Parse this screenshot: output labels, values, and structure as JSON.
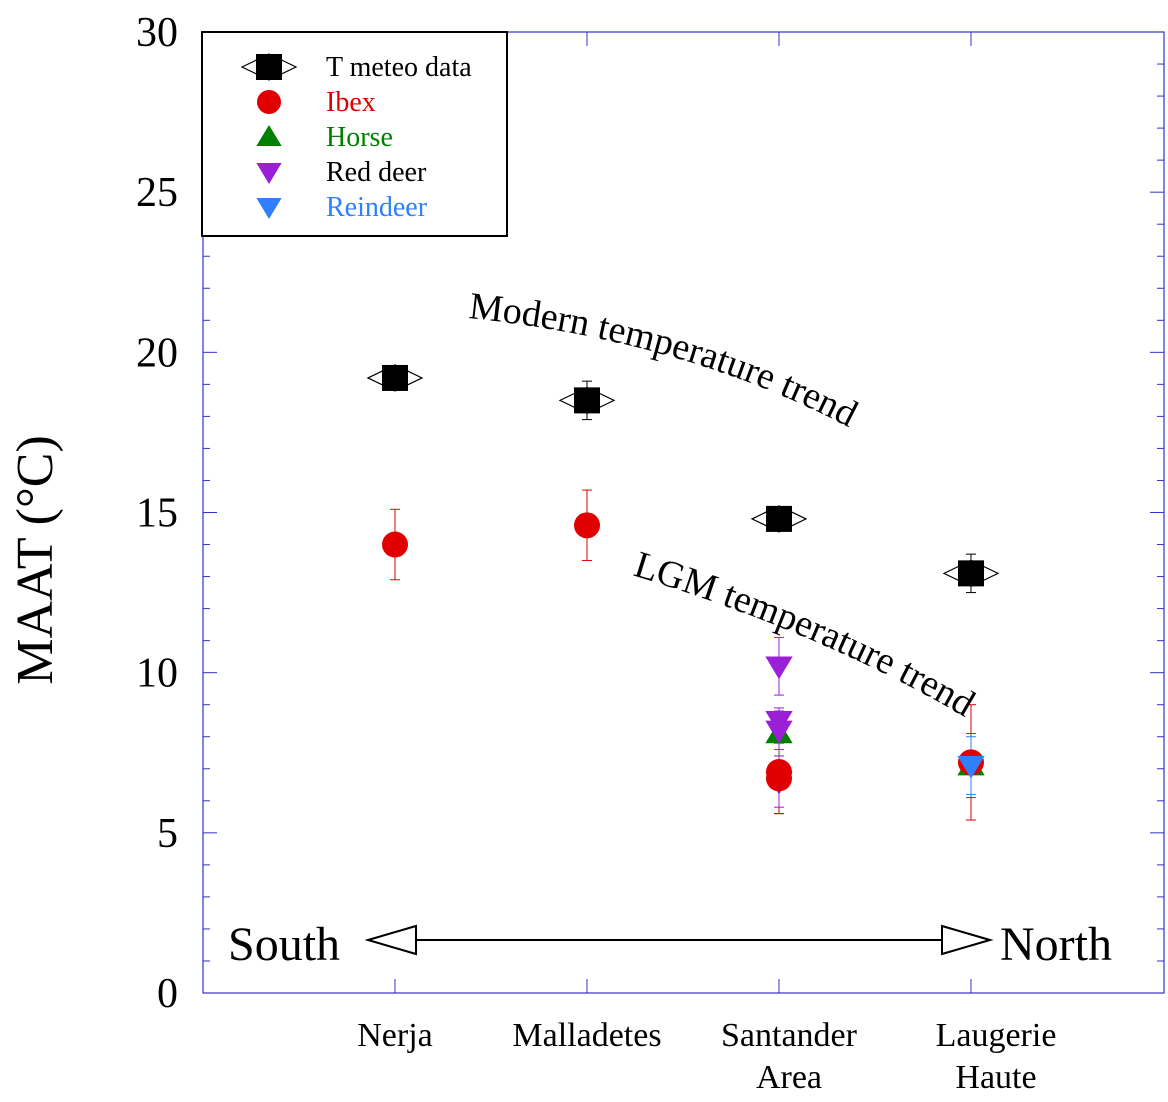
{
  "chart_data": {
    "type": "scatter",
    "ylabel": "MAAT (°C)",
    "xlabel": "",
    "ylim": [
      0,
      30
    ],
    "yticks": [
      0,
      5,
      10,
      15,
      20,
      25,
      30
    ],
    "ytick_labels": [
      "0",
      "5",
      "10",
      "15",
      "20",
      "25",
      "30"
    ],
    "categories": [
      {
        "name": "nerja",
        "lines": [
          "Nerja"
        ]
      },
      {
        "name": "malladetes",
        "lines": [
          "Malladetes"
        ]
      },
      {
        "name": "santander",
        "lines": [
          "Santander",
          "Area"
        ]
      },
      {
        "name": "laugerie",
        "lines": [
          "Laugerie",
          "Haute"
        ]
      }
    ],
    "legend": {
      "position": "top-left",
      "entries": [
        {
          "label": "T meteo data",
          "color": "#000000",
          "marker": "diamond-square"
        },
        {
          "label": "Ibex",
          "color": "#e00000",
          "marker": "circle"
        },
        {
          "label": "Horse",
          "color": "#008000",
          "marker": "triangle-up"
        },
        {
          "label": "Red deer",
          "color": "#000000",
          "marker_color": "#9b1fd6",
          "marker": "triangle-down"
        },
        {
          "label": "Reindeer",
          "color": "#2f7fff",
          "marker": "triangle-down"
        }
      ]
    },
    "series": [
      {
        "name": "T meteo data",
        "marker": "diamond-square",
        "color": "#000000",
        "points": [
          {
            "x": 0,
            "y": 19.2,
            "err": 0.2
          },
          {
            "x": 1,
            "y": 18.5,
            "err": 0.6
          },
          {
            "x": 2,
            "y": 14.8,
            "err": 0.2
          },
          {
            "x": 3,
            "y": 13.1,
            "err": 0.6
          }
        ]
      },
      {
        "name": "Ibex",
        "marker": "circle",
        "color": "#e00000",
        "points": [
          {
            "x": 0,
            "y": 14.0,
            "err": 1.1
          },
          {
            "x": 1,
            "y": 14.6,
            "err": 1.1
          },
          {
            "x": 2,
            "y": 6.9,
            "err": 1.3
          },
          {
            "x": 2,
            "y": 6.7,
            "err": 1.1
          },
          {
            "x": 3,
            "y": 7.2,
            "err": 1.8
          }
        ]
      },
      {
        "name": "Horse",
        "marker": "triangle-up",
        "color": "#008000",
        "points": [
          {
            "x": 2,
            "y": 8.1,
            "err": 0.7
          },
          {
            "x": 3,
            "y": 7.1,
            "err": 1.0
          }
        ]
      },
      {
        "name": "Red deer",
        "marker": "triangle-down",
        "color": "#9b1fd6",
        "points": [
          {
            "x": 2,
            "y": 10.2,
            "err": 0.9
          },
          {
            "x": 2,
            "y": 8.5,
            "err": 0.4
          },
          {
            "x": 2,
            "y": 8.2,
            "err": 0.6
          },
          {
            "x": 2,
            "y": 6.6,
            "err": 0.8
          }
        ]
      },
      {
        "name": "Reindeer",
        "marker": "triangle-down",
        "color": "#2f7fff",
        "points": [
          {
            "x": 3,
            "y": 7.1,
            "err": 0.9
          }
        ]
      }
    ],
    "annotations": {
      "modern": "Modern temperature trend",
      "lgm": "LGM temperature trend",
      "south": "South",
      "north": "North"
    },
    "grid": false,
    "axis_color": "#3333cc"
  }
}
